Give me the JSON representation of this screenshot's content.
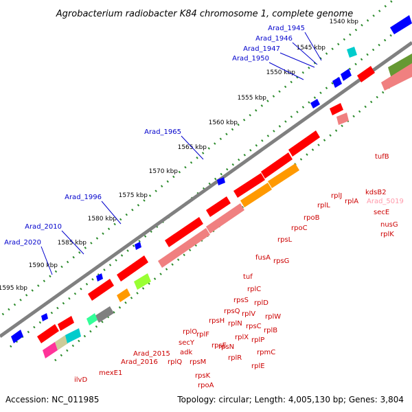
{
  "header": {
    "title": "Agrobacterium radiobacter K84 chromosome 1, complete genome"
  },
  "footer": {
    "accession": "Accession: NC_011985",
    "summary": "Topology: circular; Length: 4,005,130 bp; Genes: 3,804"
  },
  "ruler": [
    "1540 kbp",
    "1545 kbp",
    "1550 kbp",
    "1555 kbp",
    "1560 kbp",
    "1565 kbp",
    "1570 kbp",
    "1575 kbp",
    "1580 kbp",
    "1585 kbp",
    "1590 kbp",
    "1595 kbp"
  ],
  "blue_labels": [
    "Arad_1945",
    "Arad_1946",
    "Arad_1947",
    "Arad_1950",
    "Arad_1965",
    "Arad_1996",
    "Arad_2010",
    "Arad_2020"
  ],
  "red_labels": [
    "tufB",
    "kdsB2",
    "Arad_5019",
    "secE",
    "nusG",
    "rplK",
    "rplA",
    "rplJ",
    "rplL",
    "rpoB",
    "rpoC",
    "rpsL",
    "rpsG",
    "fusA",
    "tuf",
    "rplC",
    "rplD",
    "rpsS",
    "rplW",
    "rplV",
    "rplB",
    "rpsQ",
    "rpsC",
    "rplP",
    "rpsH",
    "rplN",
    "rplX",
    "rpmC",
    "rplF",
    "rplE",
    "rpsE",
    "rpsN",
    "rplR",
    "rplO",
    "secY",
    "adk",
    "Arad_2015",
    "Arad_2016",
    "rplQ",
    "rpsM",
    "rpsK",
    "rpoA",
    "mexE1",
    "ilvD"
  ],
  "colors": {
    "backbone": "#808080",
    "ruler_tick": "#2a8a2a",
    "gene_red": "#ff0000",
    "gene_blue": "#0000ff",
    "gene_salmon": "#f08080",
    "gene_orange": "#ff9900",
    "gene_gray": "#808080",
    "label_blue": "#0000cc",
    "label_red": "#cc0000",
    "label_pink": "#ff99aa"
  }
}
